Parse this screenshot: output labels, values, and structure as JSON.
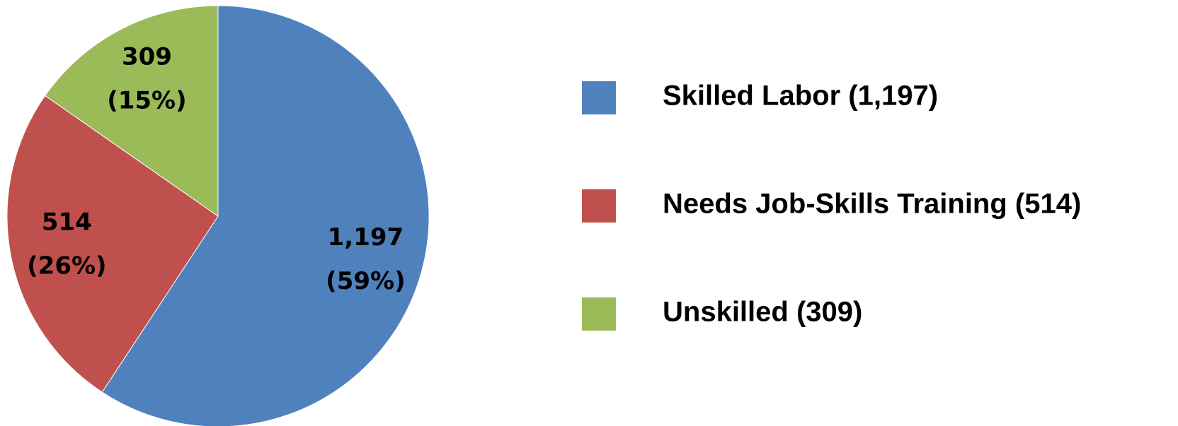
{
  "chart_data": {
    "type": "pie",
    "categories": [
      "Skilled Labor (1,197)",
      "Needs Job-Skills Training (514)",
      "Unskilled (309)"
    ],
    "values": [
      1197,
      514,
      309
    ],
    "value_labels": [
      "1,197",
      "514",
      "309"
    ],
    "percent_labels": [
      "(59%)",
      "(26%)",
      "(15%)"
    ],
    "colors": [
      "#4f81bd",
      "#c0504d",
      "#9bbb59"
    ],
    "legend": "right"
  }
}
